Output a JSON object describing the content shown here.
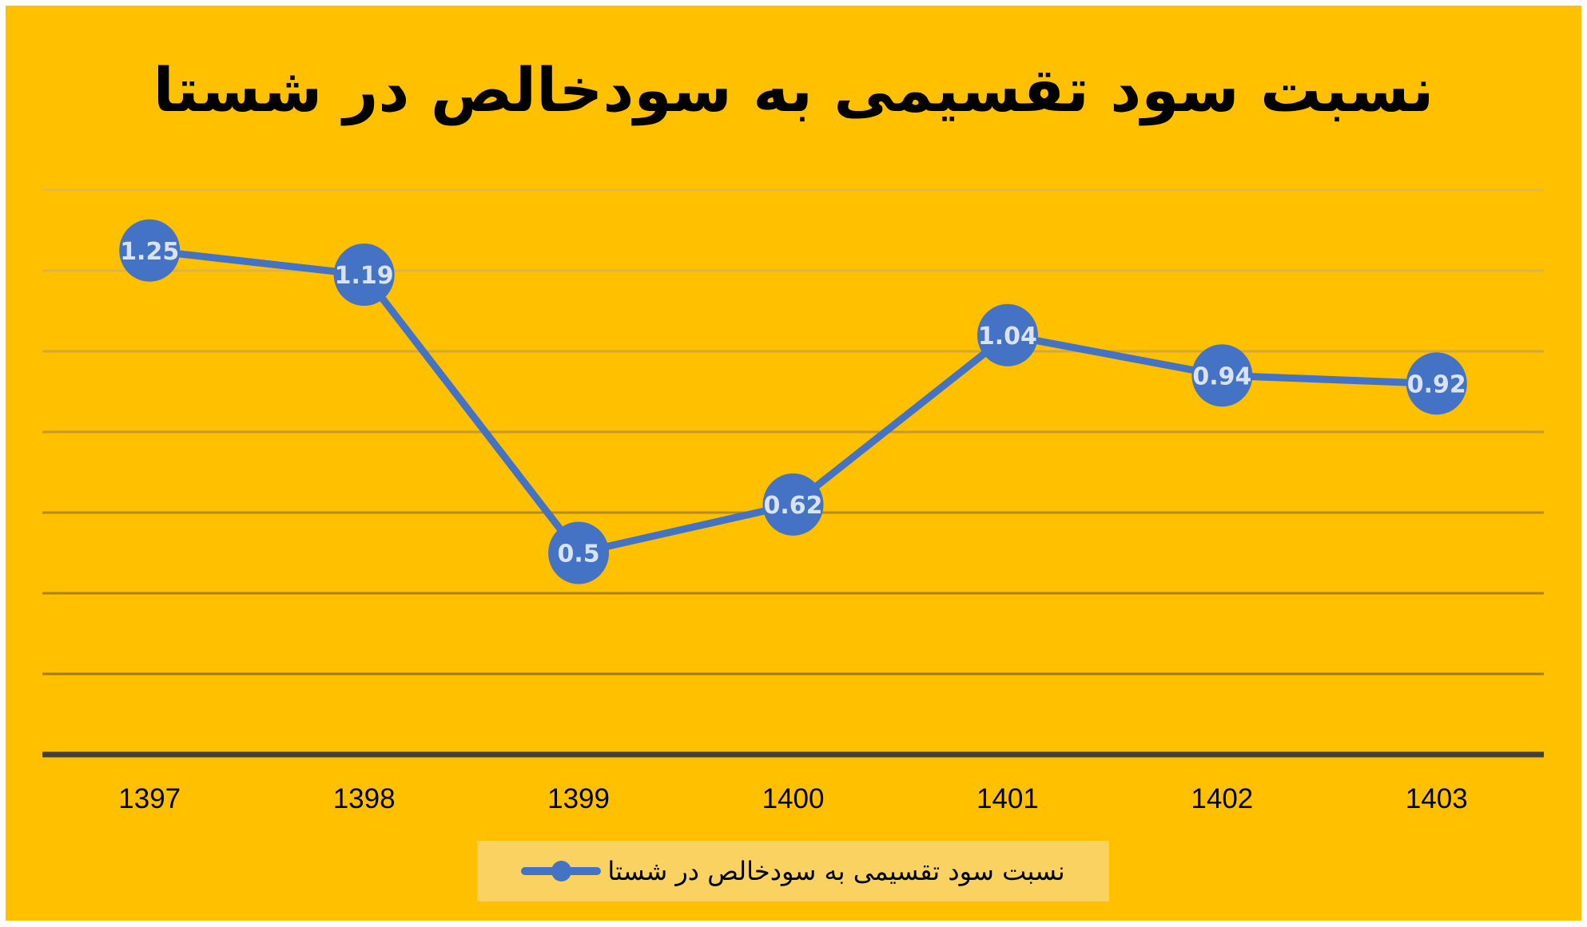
{
  "title": "نسبت سود تقسیمی به سودخالص در شستا",
  "legend": {
    "label": "نسبت سود تقسیمی به سودخالص در شستا"
  },
  "colors": {
    "background": "#FFC000",
    "series": "#4472C4",
    "data_label": "#DAE3F3",
    "axis": "#404040",
    "legend_bg": "#F9D262",
    "gridlines": [
      "#E3B84B",
      "#DDB247",
      "#D4A838",
      "#C49A2C",
      "#B48D22",
      "#A88216",
      "#A07A10"
    ]
  },
  "chart_data": {
    "type": "line",
    "title": "نسبت سود تقسیمی به سودخالص در شستا",
    "xlabel": "",
    "ylabel": "",
    "categories": [
      "1397",
      "1398",
      "1399",
      "1400",
      "1401",
      "1402",
      "1403"
    ],
    "series": [
      {
        "name": "نسبت سود تقسیمی به سودخالص در شستا",
        "values": [
          1.25,
          1.19,
          0.5,
          0.62,
          1.04,
          0.94,
          0.92
        ]
      }
    ],
    "ylim": [
      0,
      1.4
    ],
    "ytick_step": 0.2,
    "y_axis_labels_visible": false,
    "grid": true,
    "legend_position": "bottom",
    "data_labels": true
  }
}
